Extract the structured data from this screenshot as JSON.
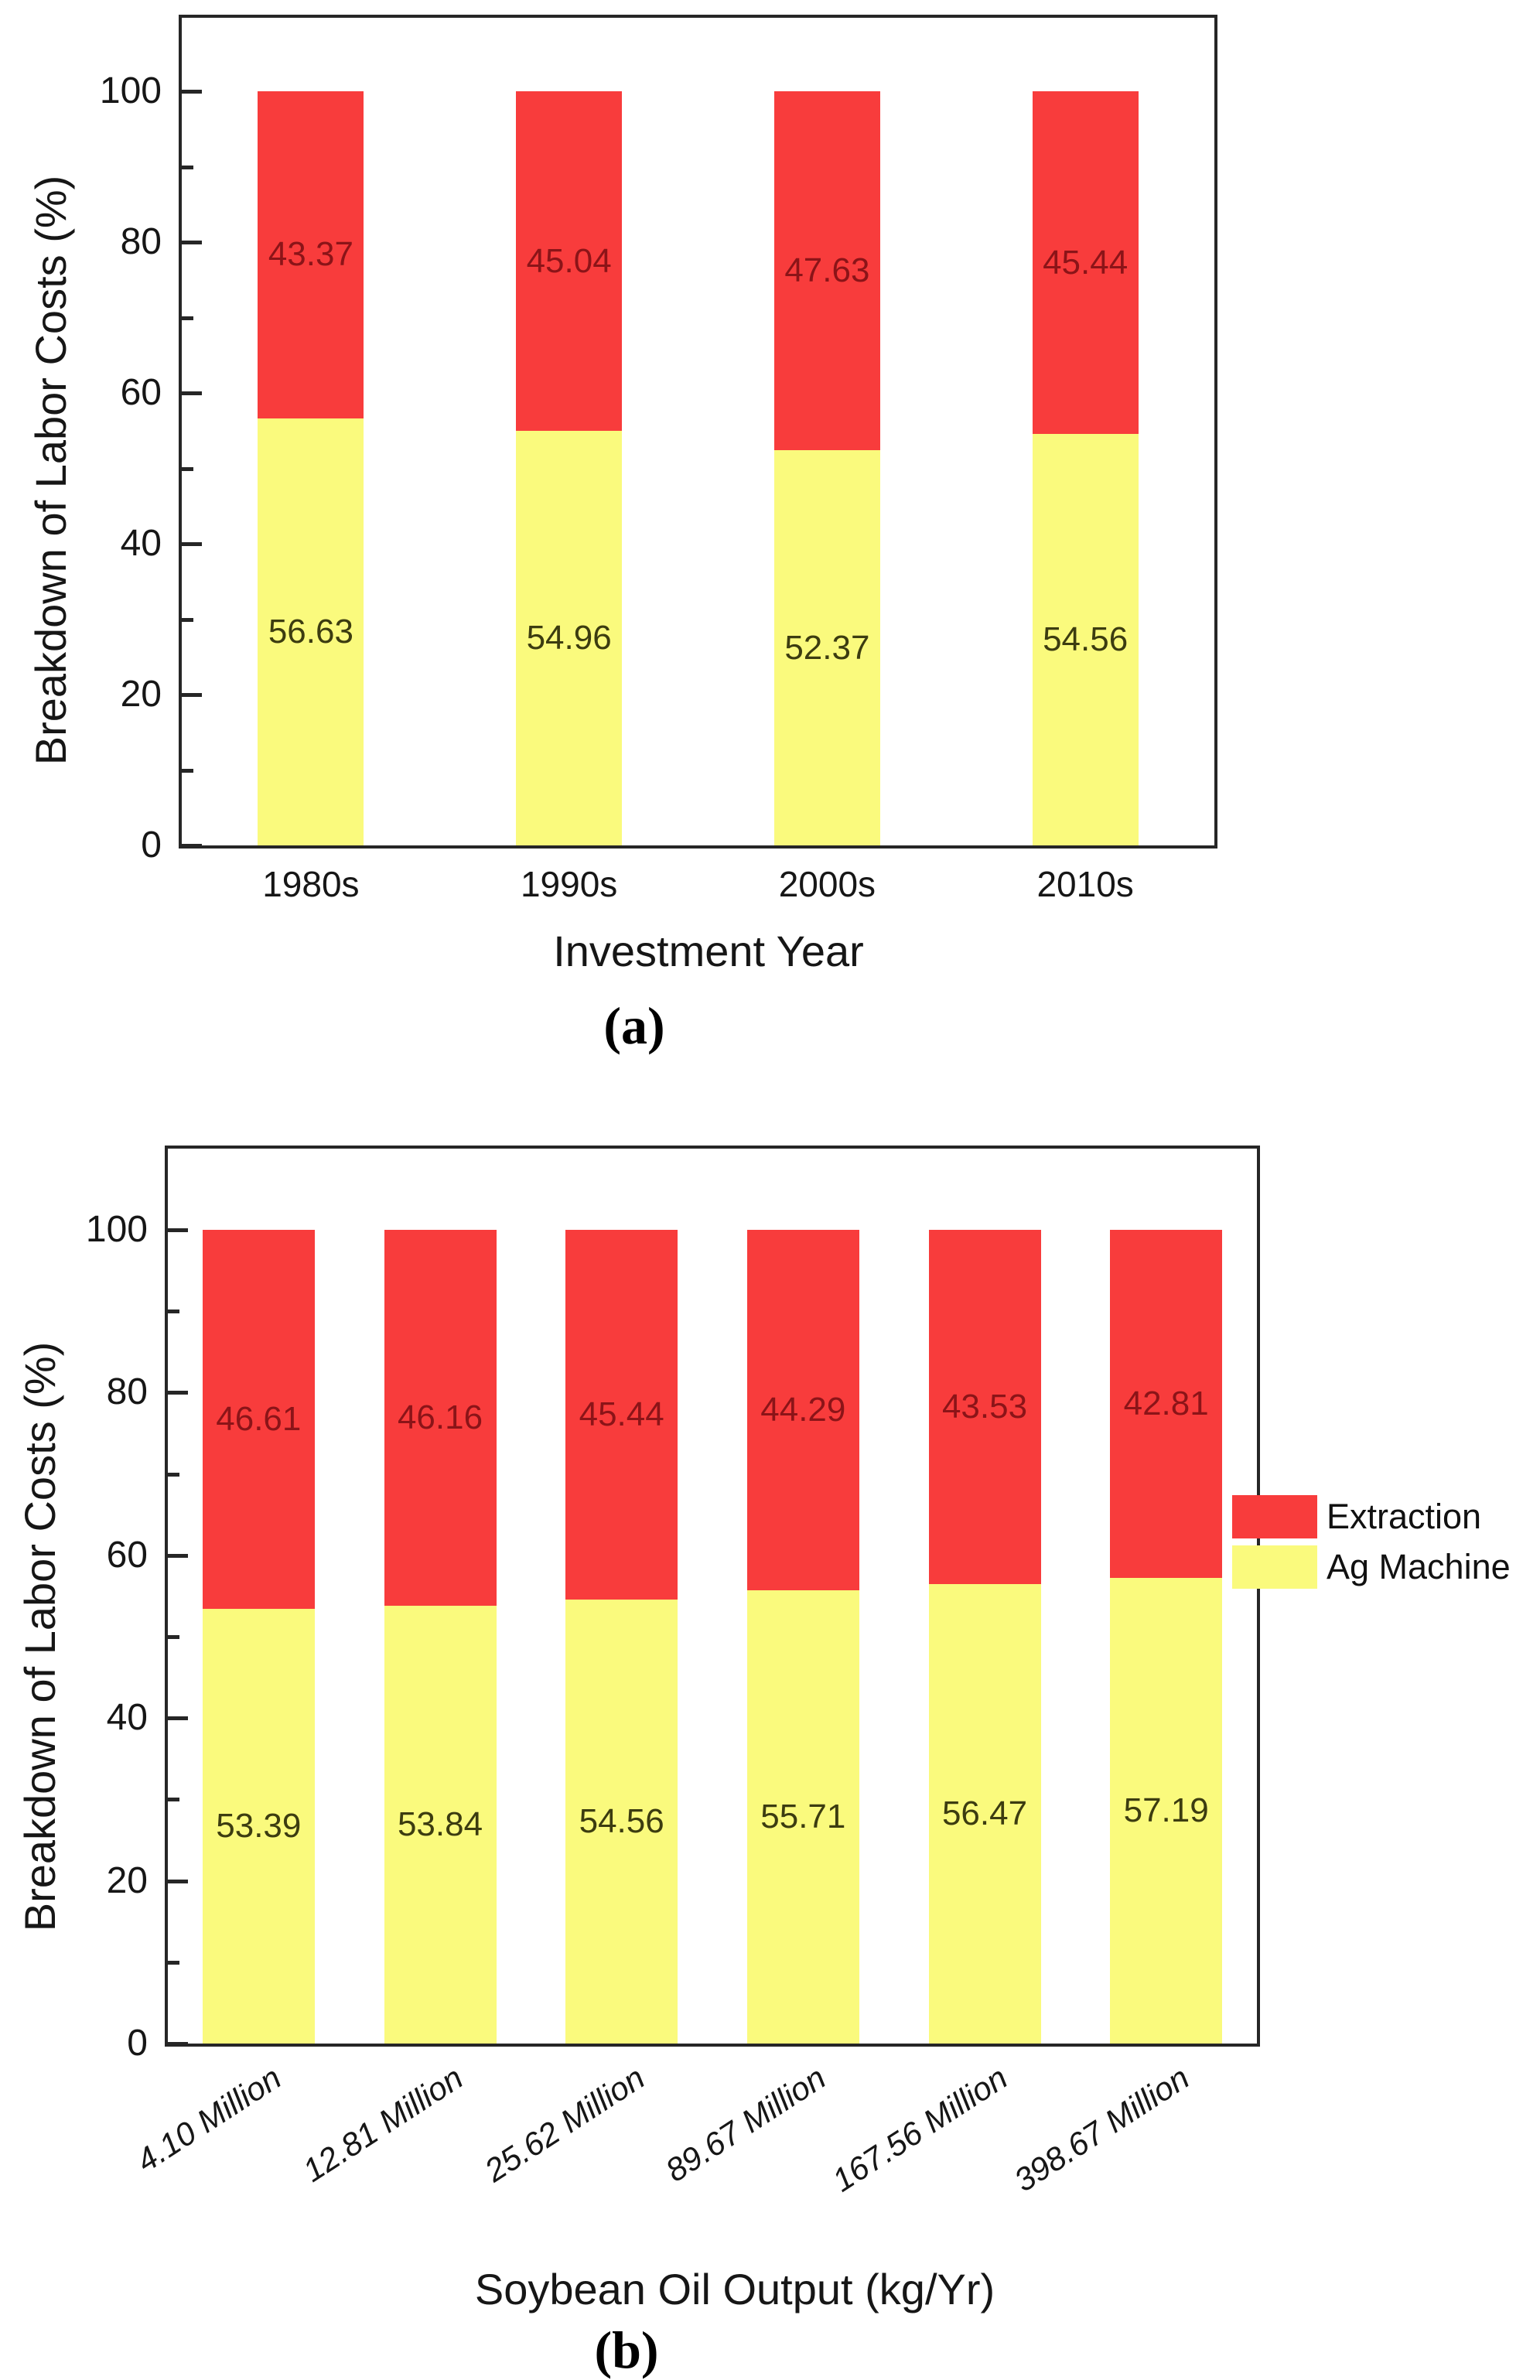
{
  "palette": {
    "extraction_red": "#f83c3c",
    "ag_machine_yellow": "#fafa7d",
    "red_value_label": "#8b1418",
    "yellow_value_label": "#3c3c10",
    "axis_color": "#262626"
  },
  "legend": {
    "entries": [
      {
        "label": "Extraction",
        "color": "#f83c3c"
      },
      {
        "label": "Ag Machine",
        "color": "#fafa7d"
      }
    ]
  },
  "chart_data": [
    {
      "id": "a",
      "type": "bar",
      "stacked": true,
      "grid": false,
      "caption": "(a)",
      "xlabel": "Investment Year",
      "ylabel": "Breakdown of Labor Costs (%)",
      "ylim": [
        0,
        100
      ],
      "yticks_major": [
        0,
        20,
        40,
        60,
        80,
        100
      ],
      "yticks_minor": [
        10,
        30,
        50,
        70,
        90
      ],
      "legend_position": "none",
      "categories": [
        "1980s",
        "1990s",
        "2000s",
        "2010s"
      ],
      "series": [
        {
          "name": "Ag Machine",
          "color": "#fafa7d",
          "label_color": "#3c3c10",
          "values": [
            56.63,
            54.96,
            52.37,
            54.56
          ]
        },
        {
          "name": "Extraction",
          "color": "#f83c3c",
          "label_color": "#8b1418",
          "values": [
            43.37,
            45.04,
            47.63,
            45.44
          ]
        }
      ]
    },
    {
      "id": "b",
      "type": "bar",
      "stacked": true,
      "grid": false,
      "caption": "(b)",
      "xlabel": "Soybean Oil Output (kg/Yr)",
      "ylabel": "Breakdown of Labor Costs (%)",
      "ylim": [
        0,
        100
      ],
      "yticks_major": [
        0,
        20,
        40,
        60,
        80,
        100
      ],
      "yticks_minor": [
        10,
        30,
        50,
        70,
        90
      ],
      "legend_position": "right",
      "categories": [
        "4.10 Million",
        "12.81 Million",
        "25.62 Million",
        "89.67 Million",
        "167.56 Million",
        "398.67 Million"
      ],
      "series": [
        {
          "name": "Ag Machine",
          "color": "#fafa7d",
          "label_color": "#3c3c10",
          "values": [
            53.39,
            53.84,
            54.56,
            55.71,
            56.47,
            57.19
          ]
        },
        {
          "name": "Extraction",
          "color": "#f83c3c",
          "label_color": "#8b1418",
          "values": [
            46.61,
            46.16,
            45.44,
            44.29,
            43.53,
            42.81
          ]
        }
      ]
    }
  ]
}
